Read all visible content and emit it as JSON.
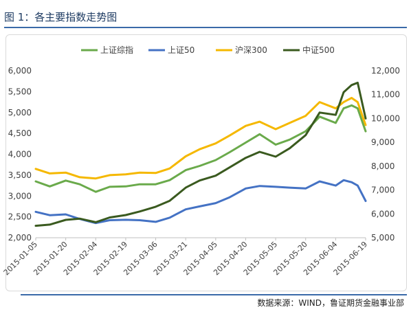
{
  "header": {
    "title": "图 1：各主要指数走势图"
  },
  "footer": {
    "source": "数据来源：WIND，鲁证期货金融事业部"
  },
  "chart_data": {
    "type": "line",
    "title": "",
    "xlabel": "",
    "ylabel": "",
    "legend_position": "top",
    "grid": false,
    "x_ticks": [
      "2015-01-05",
      "2015-01-20",
      "2015-02-04",
      "2015-02-19",
      "2015-03-06",
      "2015-03-21",
      "2015-04-05",
      "2015-04-20",
      "2015-05-05",
      "2015-05-20",
      "2015-06-04",
      "2015-06-19"
    ],
    "y_left": {
      "min": 2000,
      "max": 6000,
      "ticks": [
        "2,000",
        "2,500",
        "3,000",
        "3,500",
        "4,000",
        "4,500",
        "5,000",
        "5,500",
        "6,000"
      ]
    },
    "y_right": {
      "min": 5000,
      "max": 12000,
      "ticks": [
        "5,000",
        "6,000",
        "7,000",
        "8,000",
        "9,000",
        "10,000",
        "11,000",
        "12,000"
      ]
    },
    "x": [
      "2015-01-05",
      "2015-01-12",
      "2015-01-20",
      "2015-01-27",
      "2015-02-04",
      "2015-02-11",
      "2015-02-19",
      "2015-02-26",
      "2015-03-06",
      "2015-03-13",
      "2015-03-21",
      "2015-03-28",
      "2015-04-05",
      "2015-04-12",
      "2015-04-20",
      "2015-04-27",
      "2015-05-05",
      "2015-05-12",
      "2015-05-20",
      "2015-05-27",
      "2015-06-04",
      "2015-06-08",
      "2015-06-12",
      "2015-06-15",
      "2015-06-19"
    ],
    "series": [
      {
        "name": "上证综指",
        "color": "#6aaa4b",
        "axis": "left",
        "values": [
          3350,
          3230,
          3370,
          3280,
          3100,
          3220,
          3230,
          3280,
          3280,
          3380,
          3620,
          3720,
          3860,
          4050,
          4280,
          4480,
          4230,
          4350,
          4550,
          4900,
          4750,
          5100,
          5170,
          5100,
          4550
        ]
      },
      {
        "name": "上证50",
        "color": "#4472c4",
        "axis": "left",
        "values": [
          2620,
          2540,
          2560,
          2450,
          2350,
          2420,
          2430,
          2420,
          2380,
          2480,
          2680,
          2750,
          2830,
          2970,
          3180,
          3240,
          3220,
          3200,
          3180,
          3350,
          3250,
          3380,
          3330,
          3250,
          2880
        ]
      },
      {
        "name": "沪深300",
        "color": "#f5b800",
        "axis": "left",
        "values": [
          3650,
          3540,
          3560,
          3450,
          3420,
          3500,
          3520,
          3560,
          3550,
          3660,
          3950,
          4120,
          4260,
          4450,
          4680,
          4780,
          4600,
          4750,
          4920,
          5250,
          5100,
          5250,
          5350,
          5250,
          4700
        ]
      },
      {
        "name": "中证500",
        "color": "#3a5a1f",
        "axis": "right",
        "values": [
          5500,
          5550,
          5750,
          5800,
          5650,
          5850,
          5950,
          6100,
          6300,
          6550,
          7100,
          7400,
          7600,
          7950,
          8350,
          8600,
          8400,
          8750,
          9300,
          10250,
          10150,
          11100,
          11400,
          11500,
          10000
        ]
      }
    ]
  }
}
